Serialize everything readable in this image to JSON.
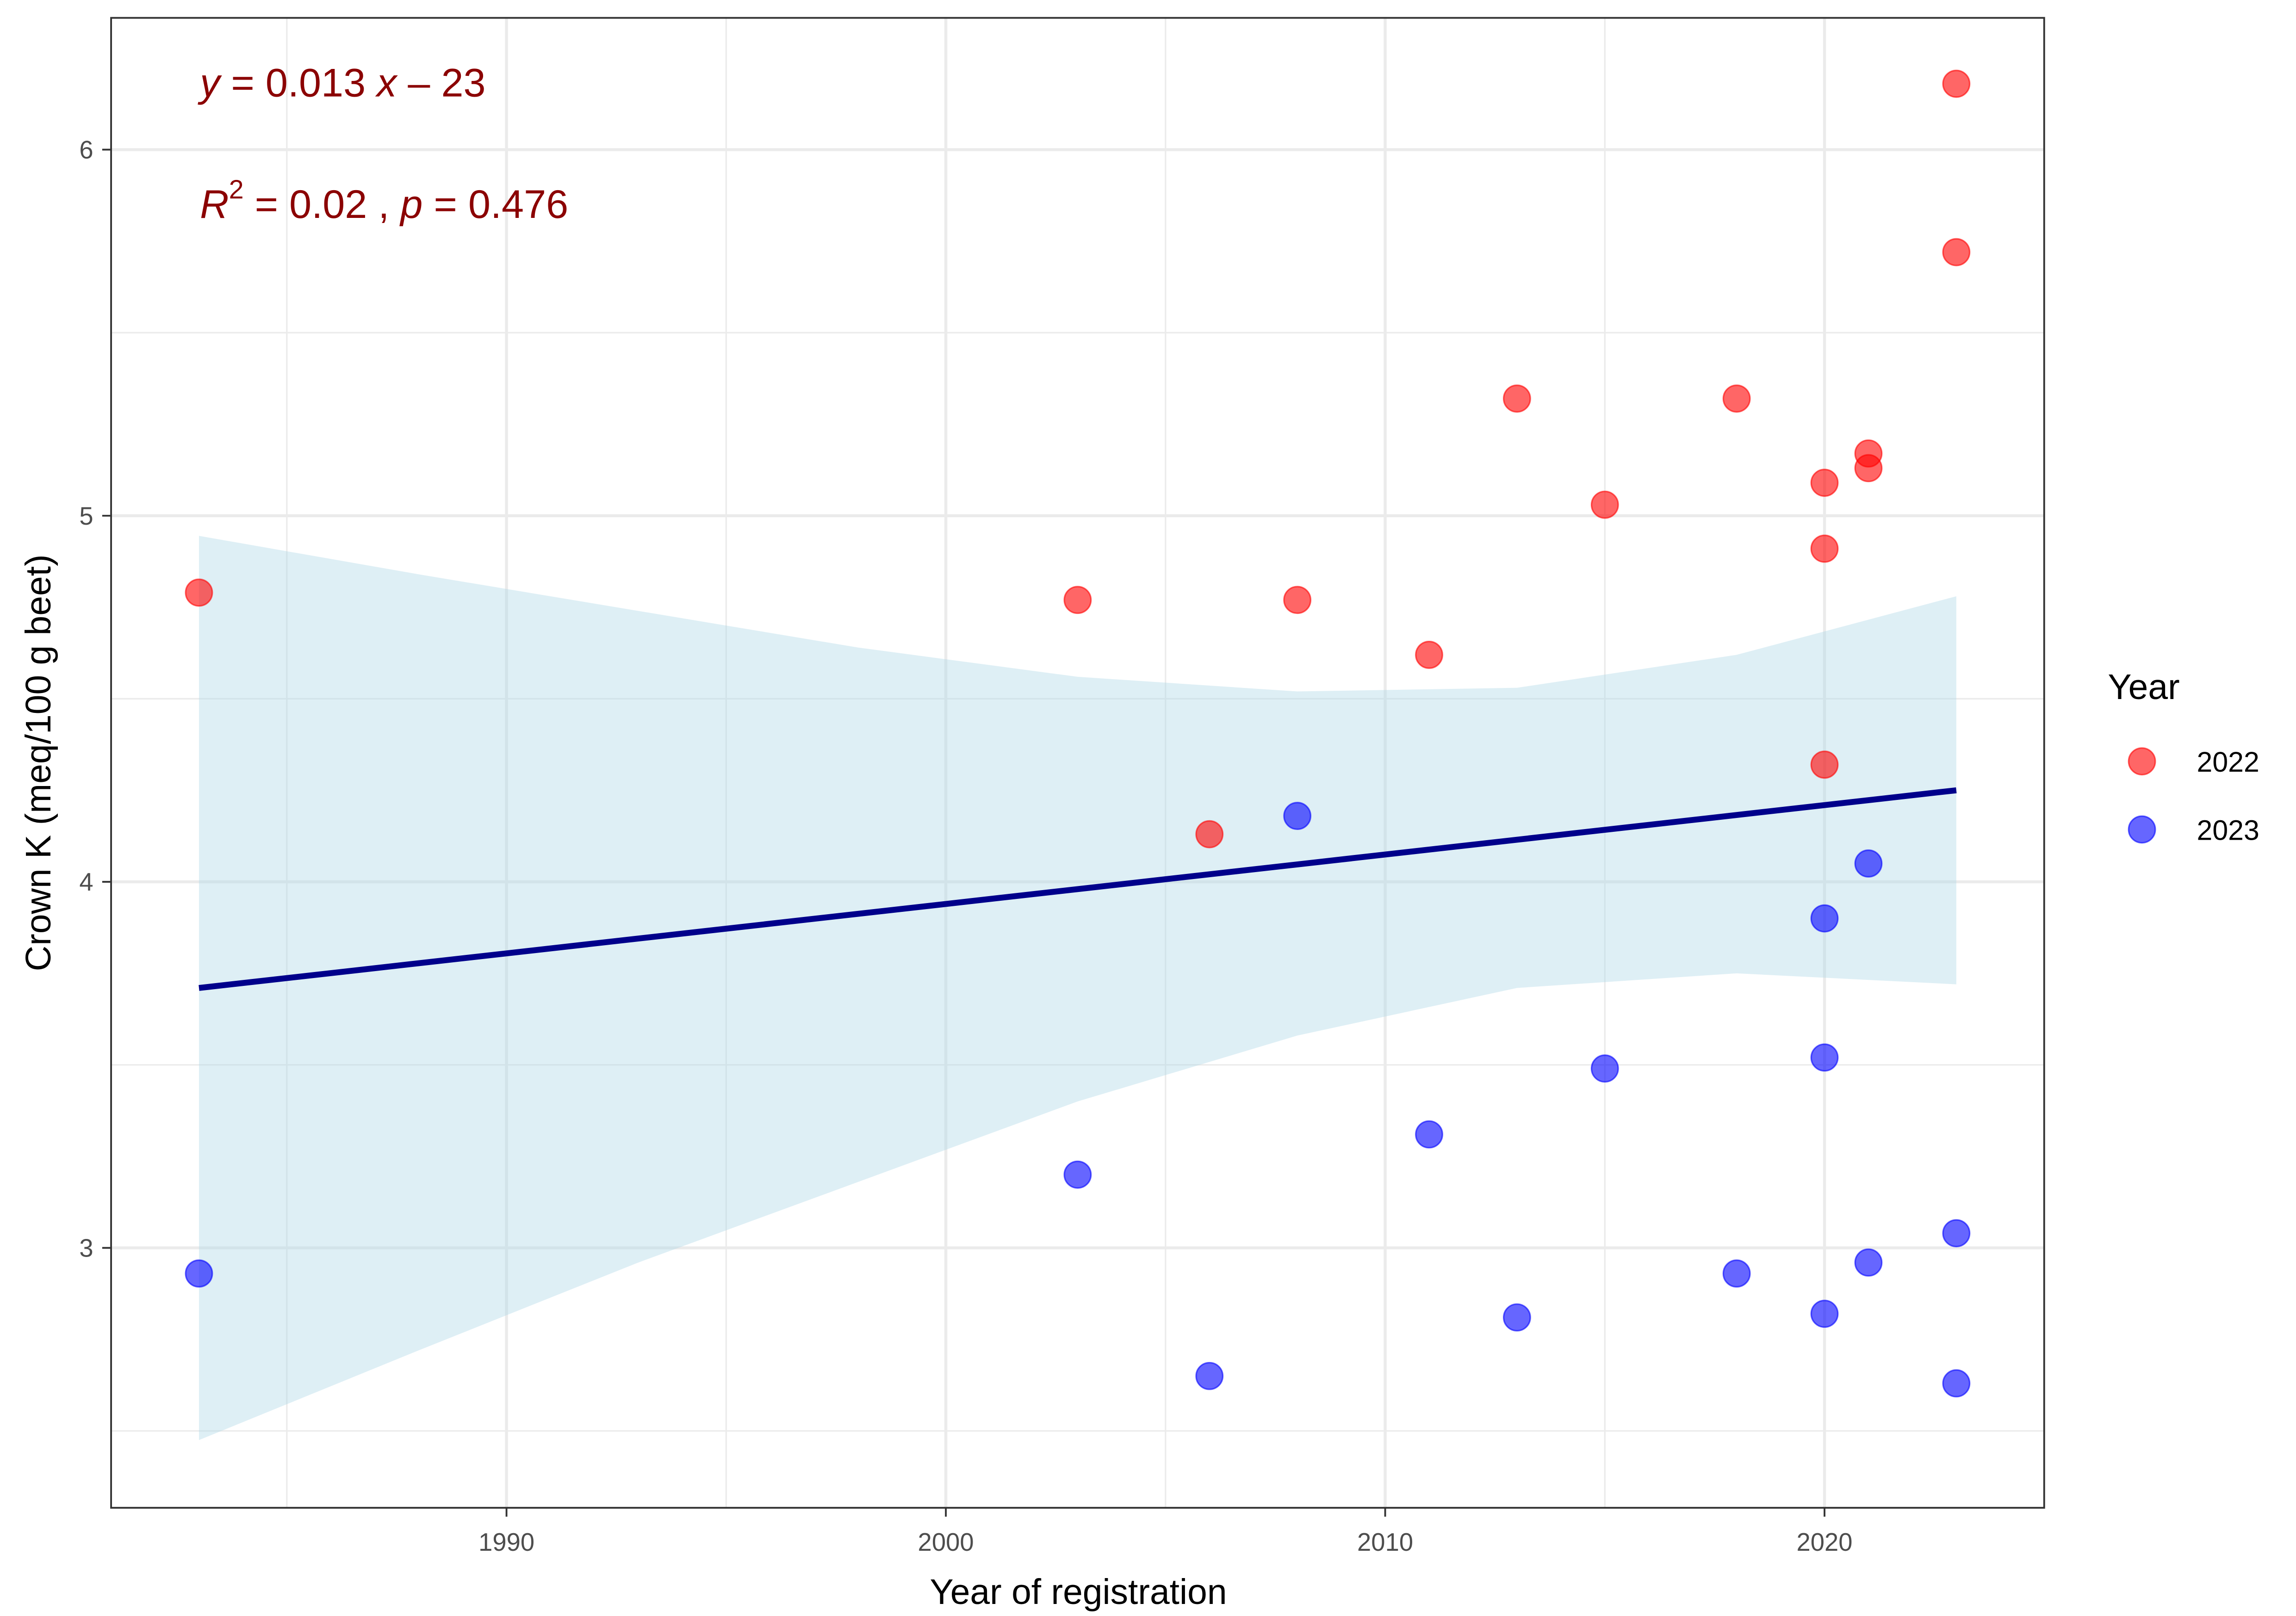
{
  "chart_data": {
    "type": "scatter",
    "xlabel": "Year of registration",
    "ylabel": "Crown K (meq/100 g beet)",
    "xlim": [
      1981,
      2025
    ],
    "ylim": [
      2.29,
      6.36
    ],
    "xticks": [
      1990,
      2000,
      2010,
      2020
    ],
    "xtick_labels": [
      "1990",
      "2000",
      "2010",
      "2020"
    ],
    "yticks": [
      3,
      4,
      5,
      6
    ],
    "ytick_labels": [
      "3",
      "4",
      "5",
      "6"
    ],
    "grid": true,
    "legend": {
      "title": "Year",
      "placement": "right",
      "entries": [
        "2022",
        "2023"
      ]
    },
    "annotations": {
      "equation": {
        "y": "y",
        "eq": " = 0.013 ",
        "x": "x",
        "rest": " – 23"
      },
      "stats": {
        "r": "R",
        "sup": "2",
        "r_val": " = 0.02 , ",
        "p": "p",
        "p_val": " = 0.476"
      }
    },
    "series": [
      {
        "name": "2022",
        "color": "#ff0000",
        "x": [
          1983,
          2003,
          2006,
          2008,
          2011,
          2013,
          2015,
          2018,
          2020,
          2020,
          2020,
          2021,
          2021,
          2023,
          2023
        ],
        "y": [
          4.79,
          4.77,
          4.13,
          4.77,
          4.62,
          5.32,
          5.03,
          5.32,
          5.09,
          4.91,
          4.32,
          5.17,
          5.13,
          6.18,
          5.72
        ]
      },
      {
        "name": "2023",
        "color": "#0000ff",
        "x": [
          1983,
          2003,
          2006,
          2008,
          2011,
          2013,
          2015,
          2018,
          2020,
          2020,
          2020,
          2021,
          2021,
          2023,
          2023
        ],
        "y": [
          2.93,
          3.2,
          2.65,
          4.18,
          3.31,
          2.81,
          3.49,
          2.93,
          3.9,
          3.52,
          2.82,
          4.05,
          2.96,
          3.04,
          2.63
        ]
      }
    ],
    "regression": {
      "x": [
        1983,
        2023
      ],
      "y": [
        3.71,
        4.25
      ],
      "color": "#00008b"
    },
    "confidence_band": {
      "color": "#add8e6",
      "x": [
        1983,
        1988,
        1993,
        1998,
        2003,
        2008,
        2013,
        2018,
        2023
      ],
      "lower": [
        2.475,
        2.72,
        2.96,
        3.18,
        3.4,
        3.58,
        3.71,
        3.75,
        3.72
      ],
      "upper": [
        4.945,
        4.84,
        4.74,
        4.64,
        4.56,
        4.52,
        4.53,
        4.62,
        4.78
      ]
    }
  }
}
